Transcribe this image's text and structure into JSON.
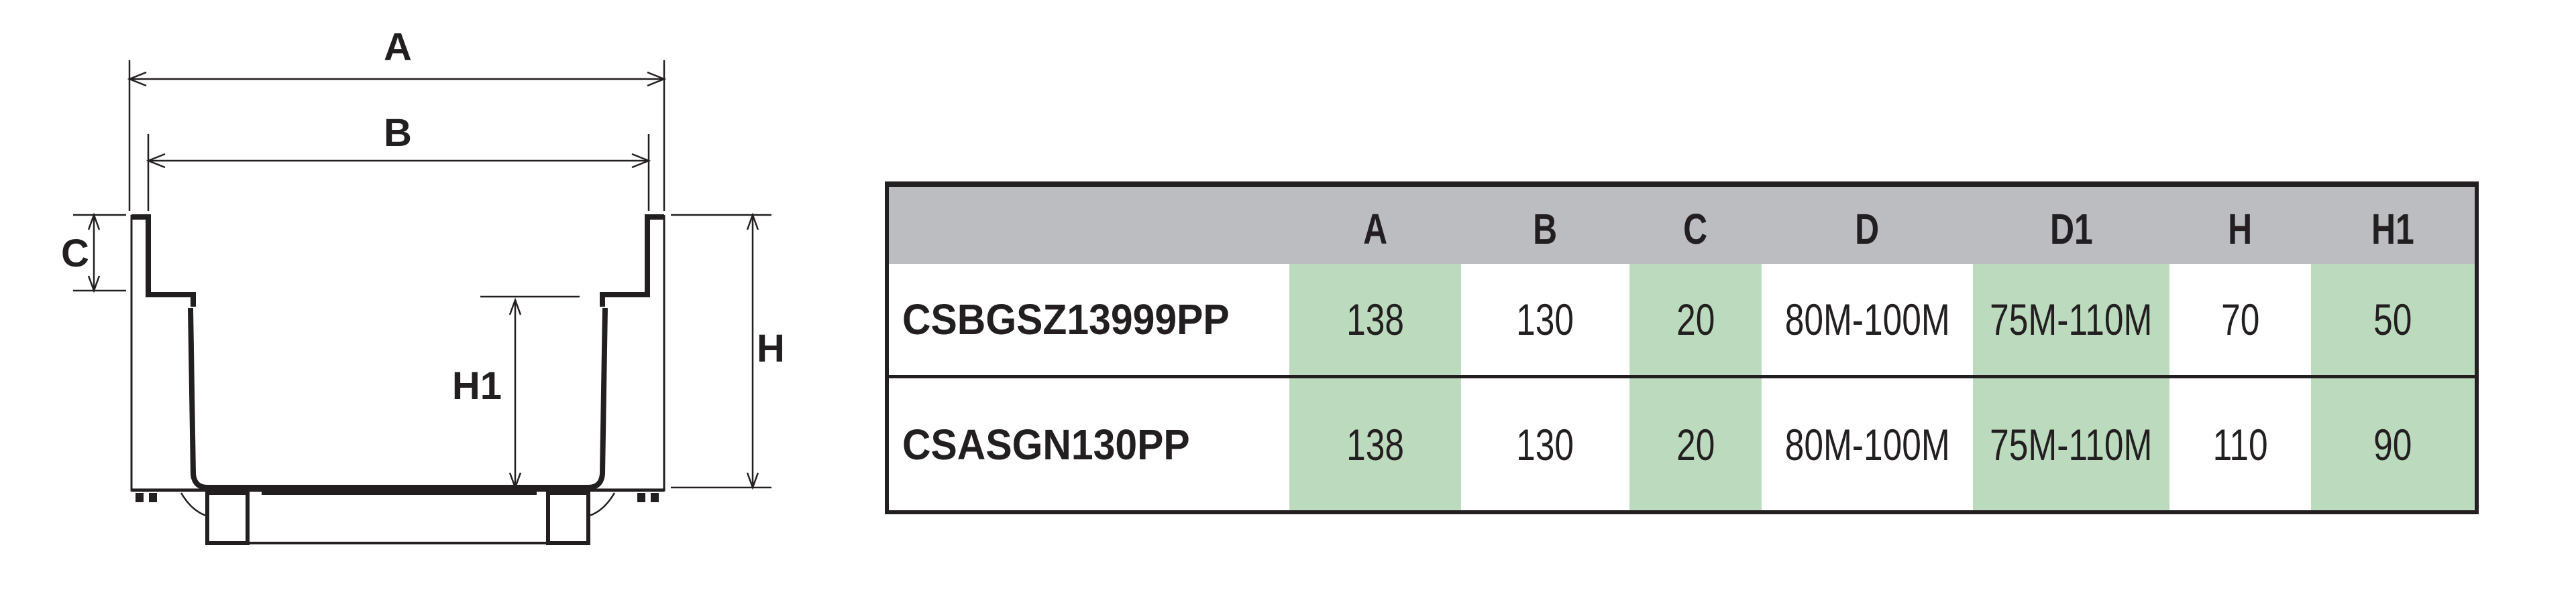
{
  "drawing": {
    "labels": {
      "A": "A",
      "B": "B",
      "C": "C",
      "H": "H",
      "H1": "H1"
    }
  },
  "table": {
    "headers": [
      "",
      "A",
      "B",
      "C",
      "D",
      "D1",
      "H",
      "H1"
    ],
    "rows": [
      {
        "model": "CSBGSZ13999PP",
        "A": "138",
        "B": "130",
        "C": "20",
        "D": "80M-100M",
        "D1": "75M-110M",
        "H": "70",
        "H1": "50"
      },
      {
        "model": "CSASGN130PP",
        "A": "138",
        "B": "130",
        "C": "20",
        "D": "80M-100M",
        "D1": "75M-110M",
        "H": "110",
        "H1": "90"
      }
    ],
    "colors": {
      "header": "#bbbdc0",
      "highlight": "#bcdbbe",
      "border": "#231f20"
    }
  }
}
